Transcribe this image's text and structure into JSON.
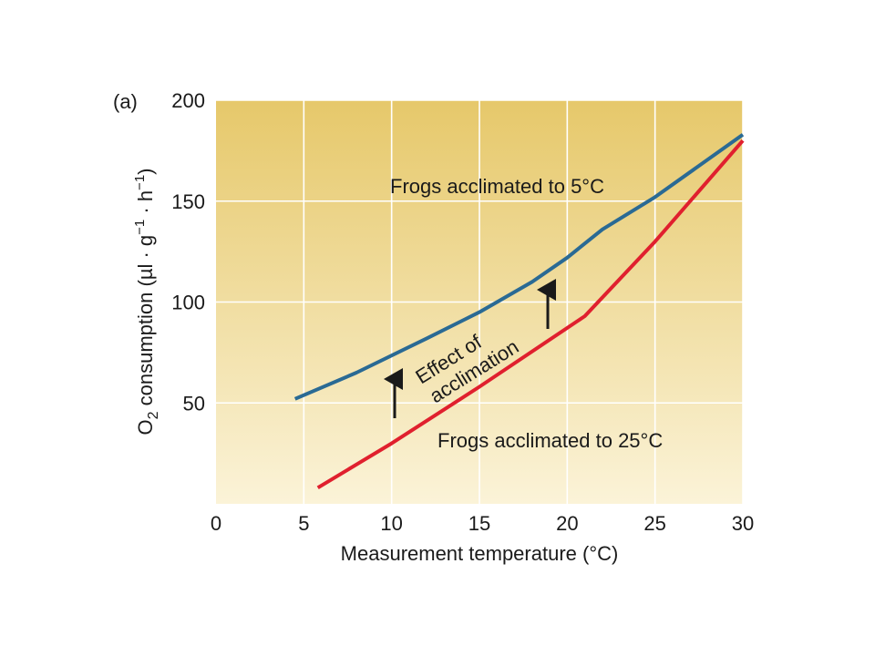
{
  "panel_label": "(a)",
  "chart_data": {
    "type": "line",
    "xlabel": "Measurement temperature (°C)",
    "ylabel": {
      "o": "O",
      "sub": "2",
      "main": " consumption (µl · g",
      "sup1": "−1",
      "mid": " · h",
      "sup2": "−1",
      "end": ")"
    },
    "xlim": [
      0,
      30
    ],
    "ylim": [
      0,
      200
    ],
    "xticks": [
      0,
      5,
      10,
      15,
      20,
      25,
      30
    ],
    "yticks": [
      50,
      100,
      150,
      200
    ],
    "grid": true,
    "series": [
      {
        "name": "Frogs acclimated to 5°C",
        "color": "#2a6a94",
        "x": [
          4.5,
          8,
          12,
          15,
          18,
          20,
          22,
          25,
          30
        ],
        "y": [
          52,
          65,
          82,
          95,
          110,
          122,
          136,
          152,
          183
        ]
      },
      {
        "name": "Frogs acclimated to 25°C",
        "color": "#e0202e",
        "x": [
          5.8,
          10,
          15,
          21,
          25,
          30
        ],
        "y": [
          8,
          30,
          58,
          93,
          130,
          180
        ]
      }
    ],
    "annotations": [
      {
        "text_lines": [
          "Effect of",
          "acclimation"
        ]
      }
    ],
    "background_gradient": [
      "#e6c86a",
      "#fbf3d8"
    ]
  }
}
